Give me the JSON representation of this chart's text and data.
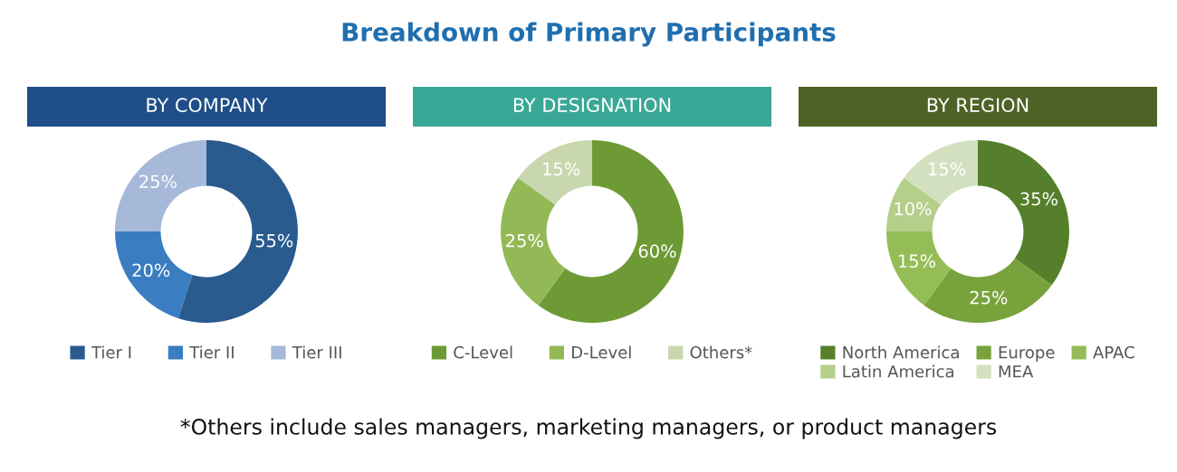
{
  "chart_data": [
    {
      "type": "donut",
      "title": "BY COMPANY",
      "annotations": [
        "Breakdown of Primary Participants"
      ],
      "categories": [
        "Tier I",
        "Tier II",
        "Tier III"
      ],
      "values": [
        55,
        20,
        25
      ],
      "value_labels": [
        "55%",
        "20%",
        "25%"
      ],
      "colors": [
        "#2a5b8f",
        "#3a7dc0",
        "#a7b9d9"
      ],
      "legend": "bottom"
    },
    {
      "type": "donut",
      "title": "BY DESIGNATION",
      "annotations": [
        "*Others include sales managers, marketing managers, or product managers"
      ],
      "categories": [
        "C-Level",
        "D-Level",
        "Others*"
      ],
      "values": [
        60,
        25,
        15
      ],
      "value_labels": [
        "60%",
        "25%",
        "15%"
      ],
      "colors": [
        "#6e9a35",
        "#93b956",
        "#c8d7ae"
      ],
      "legend": "bottom"
    },
    {
      "type": "donut",
      "title": "BY REGION",
      "categories": [
        "North America",
        "Europe",
        "APAC",
        "Latin America",
        "MEA"
      ],
      "values": [
        35,
        25,
        15,
        10,
        15
      ],
      "value_labels": [
        "35%",
        "25%",
        "15%",
        "10%",
        "15%"
      ],
      "colors": [
        "#557f2a",
        "#78a33c",
        "#94bd57",
        "#b3cf8a",
        "#d3e0bf"
      ],
      "legend": "bottom"
    }
  ]
}
